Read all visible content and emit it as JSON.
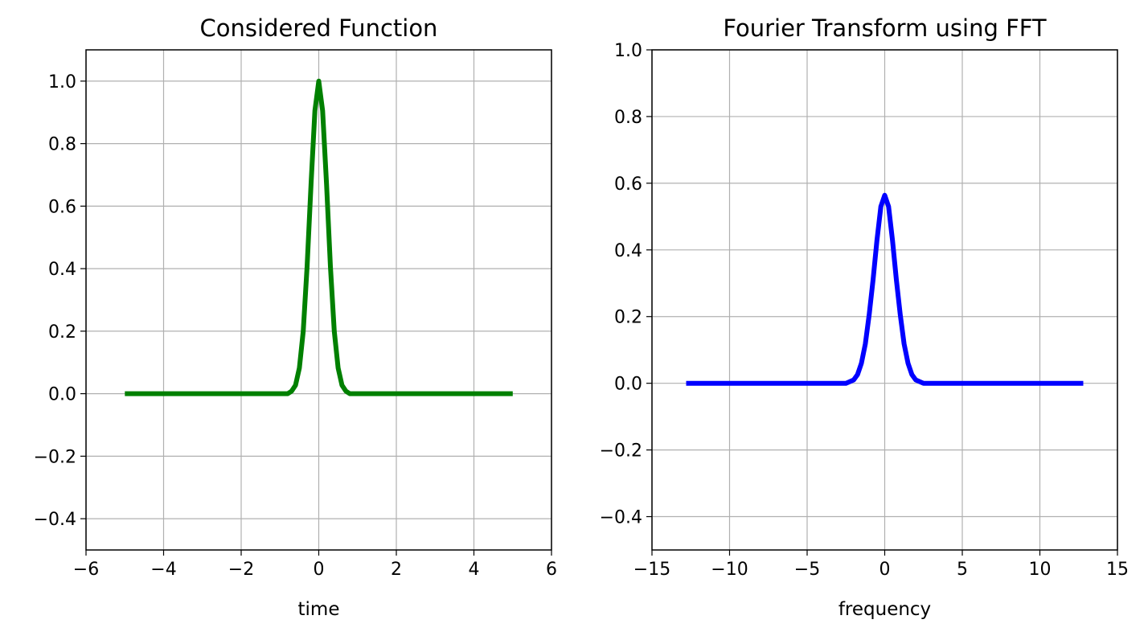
{
  "chart_data": [
    {
      "type": "line",
      "title": "Considered Function",
      "xlabel": "time",
      "ylabel": "",
      "xlim": [
        -6,
        6
      ],
      "ylim": [
        -0.5,
        1.1
      ],
      "xticks": [
        -6,
        -4,
        -2,
        0,
        2,
        4,
        6
      ],
      "xtick_labels": [
        "−6",
        "−4",
        "−2",
        "0",
        "2",
        "4",
        "6"
      ],
      "yticks": [
        -0.4,
        -0.2,
        0.0,
        0.2,
        0.4,
        0.6,
        0.8,
        1.0
      ],
      "ytick_labels": [
        "−0.4",
        "−0.2",
        "0.0",
        "0.2",
        "0.4",
        "0.6",
        "0.8",
        "1.0"
      ],
      "grid": true,
      "series": [
        {
          "color": "#008000",
          "x": [
            -5.0,
            -1.2,
            -0.8,
            -0.7,
            -0.6,
            -0.5,
            -0.4,
            -0.3,
            -0.2,
            -0.1,
            0.0,
            0.1,
            0.2,
            0.3,
            0.4,
            0.5,
            0.6,
            0.7,
            0.8,
            1.2,
            5.0
          ],
          "y": [
            0.0,
            0.0,
            0.0,
            0.008,
            0.027,
            0.082,
            0.2,
            0.407,
            0.67,
            0.905,
            1.0,
            0.905,
            0.67,
            0.407,
            0.2,
            0.082,
            0.027,
            0.008,
            0.0,
            0.0,
            0.0
          ]
        }
      ]
    },
    {
      "type": "line",
      "title": "Fourier Transform using FFT",
      "xlabel": "frequency",
      "ylabel": "",
      "xlim": [
        -15,
        15
      ],
      "ylim": [
        -0.5,
        1.0
      ],
      "xticks": [
        -15,
        -10,
        -5,
        0,
        5,
        10,
        15
      ],
      "xtick_labels": [
        "−15",
        "−10",
        "−5",
        "0",
        "5",
        "10",
        "15"
      ],
      "yticks": [
        -0.4,
        -0.2,
        0.0,
        0.2,
        0.4,
        0.6,
        0.8,
        1.0
      ],
      "ytick_labels": [
        "−0.4",
        "−0.2",
        "0.0",
        "0.2",
        "0.4",
        "0.6",
        "0.8",
        "1.0"
      ],
      "grid": true,
      "series": [
        {
          "color": "#0000ff",
          "x": [
            -12.8,
            -3.0,
            -2.5,
            -2.2,
            -2.0,
            -1.75,
            -1.5,
            -1.25,
            -1.0,
            -0.75,
            -0.5,
            -0.25,
            0.0,
            0.25,
            0.5,
            0.75,
            1.0,
            1.25,
            1.5,
            1.75,
            2.0,
            2.2,
            2.5,
            3.0,
            12.8
          ],
          "y": [
            0.0,
            0.0,
            0.0,
            0.006,
            0.01,
            0.026,
            0.06,
            0.118,
            0.206,
            0.31,
            0.428,
            0.53,
            0.564,
            0.53,
            0.428,
            0.31,
            0.206,
            0.118,
            0.06,
            0.026,
            0.01,
            0.006,
            0.0,
            0.0,
            0.0
          ]
        }
      ]
    }
  ]
}
